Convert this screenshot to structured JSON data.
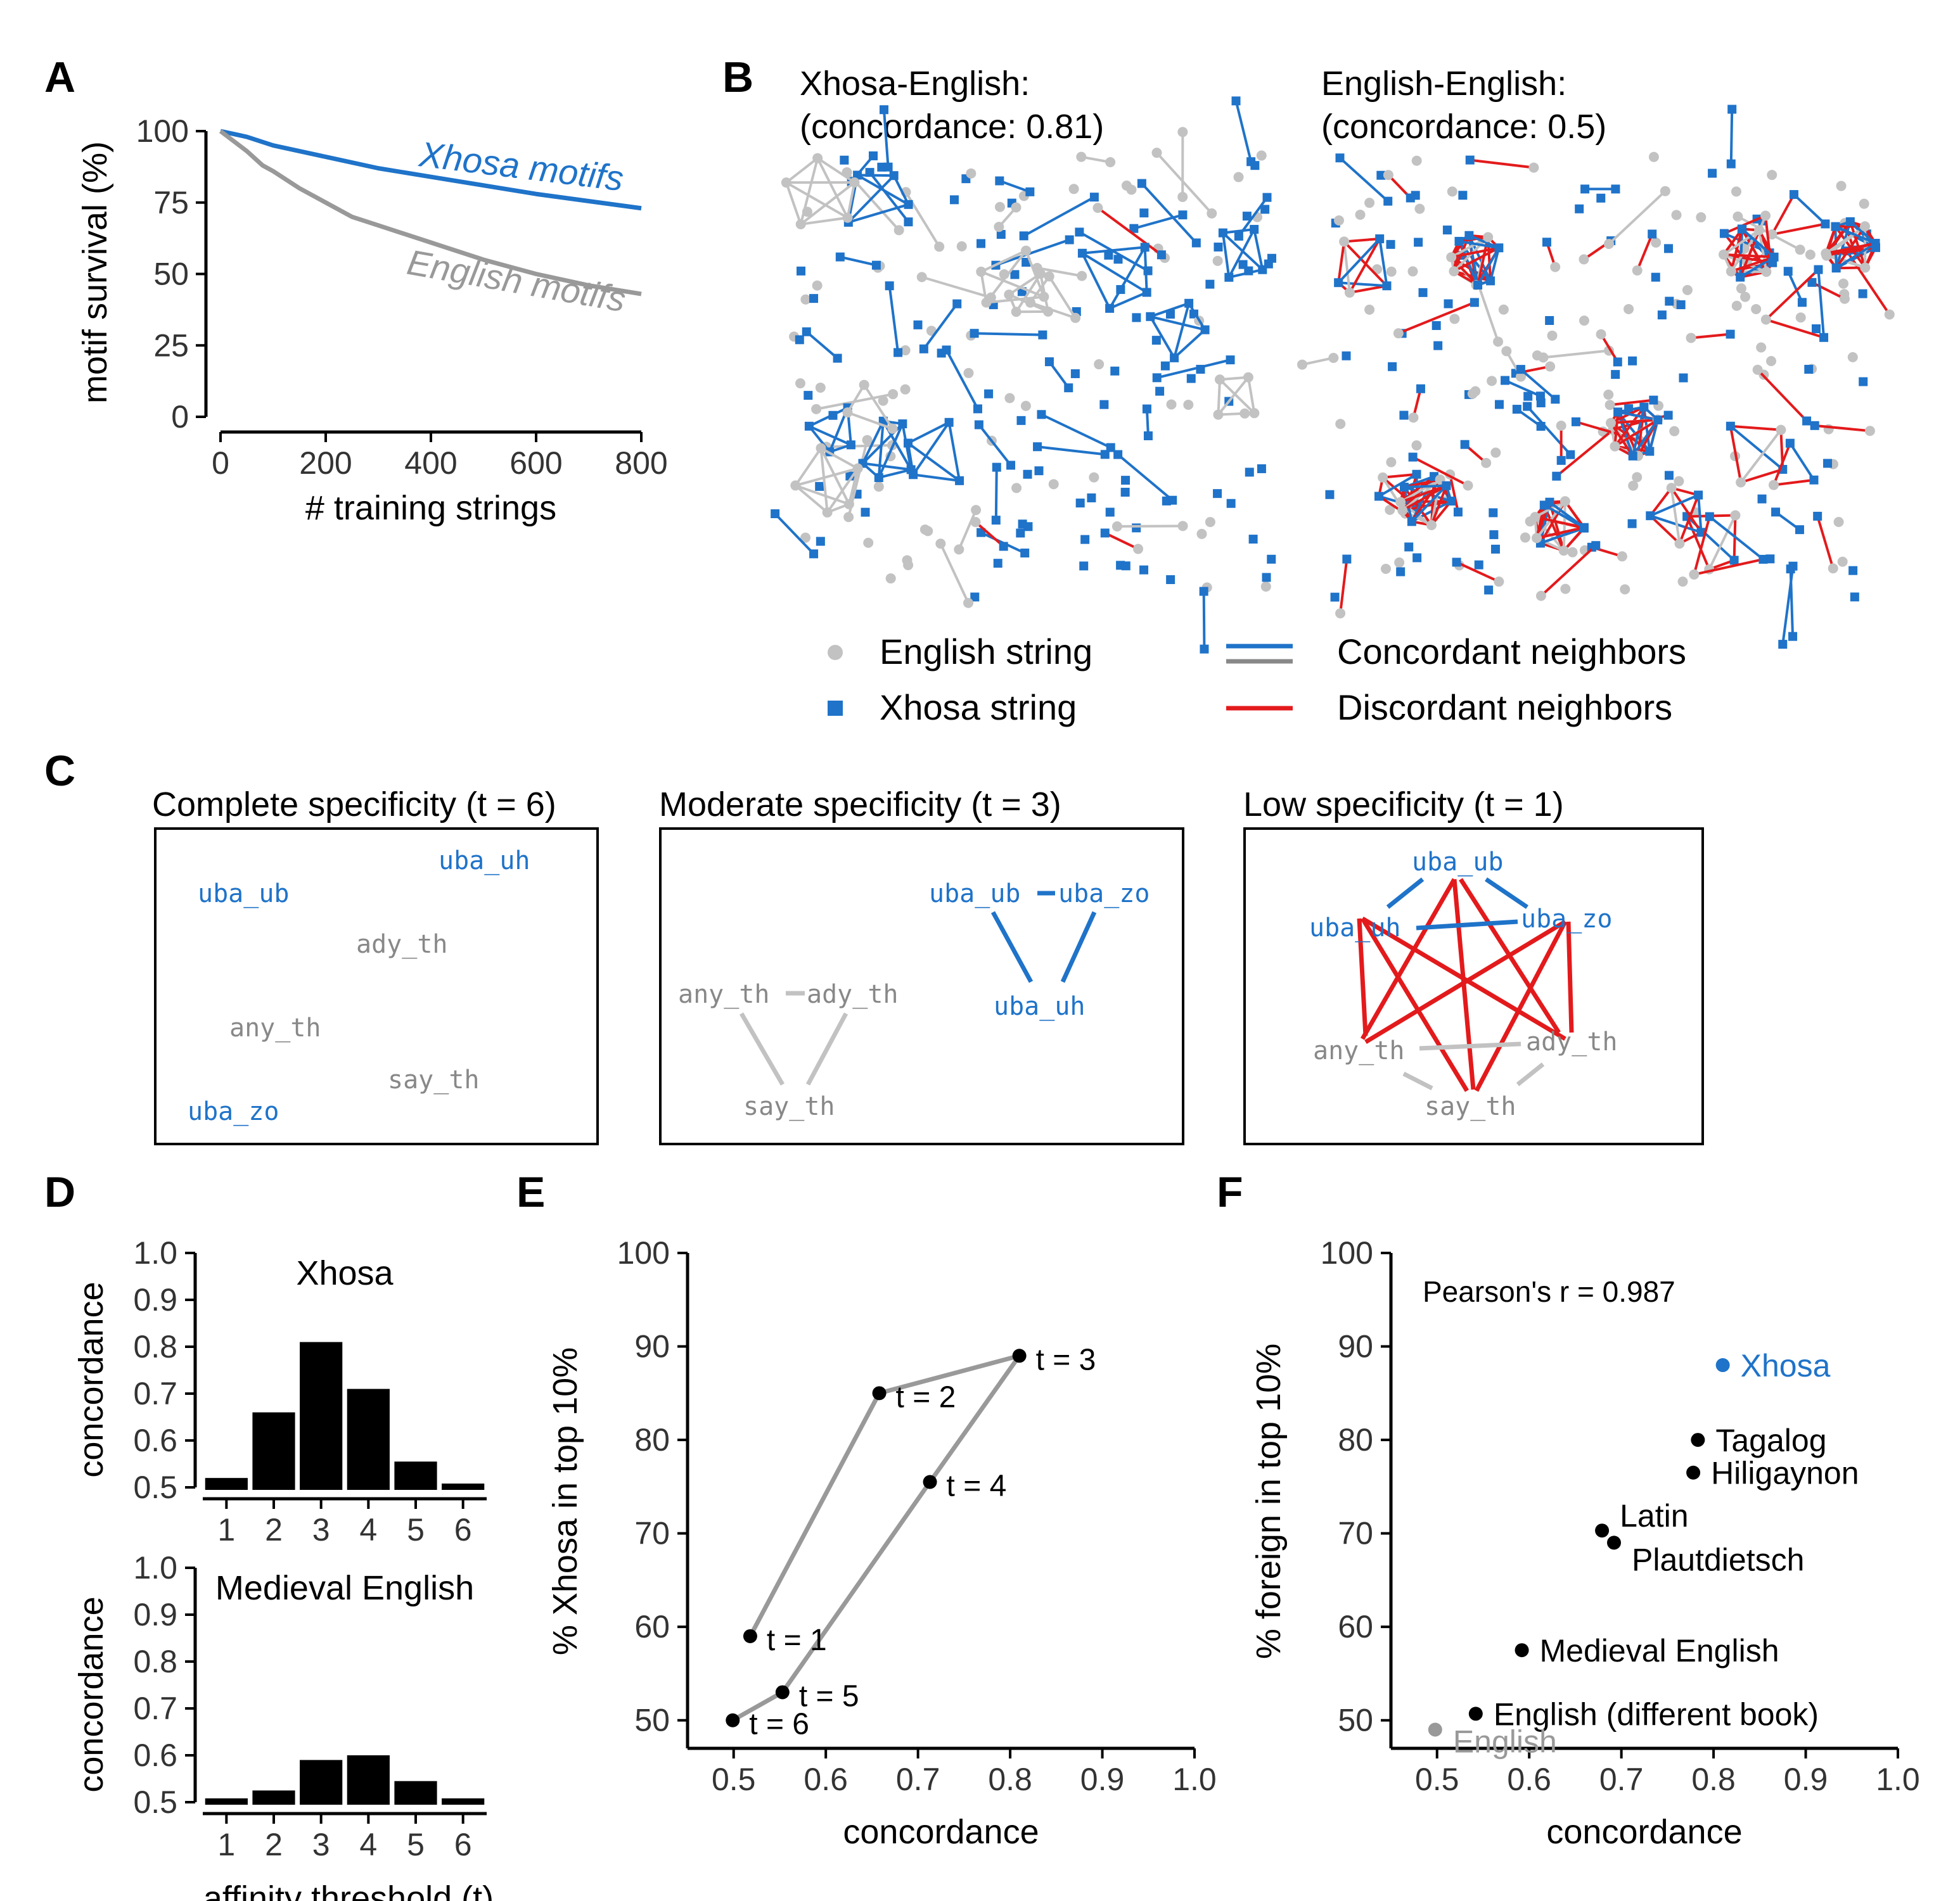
{
  "colors": {
    "blue": "#1f73c9",
    "red": "#e31a1c",
    "gray": "#999999",
    "lightgray": "#c2c2c2",
    "black": "#000000",
    "axis": "#333333"
  },
  "panels": {
    "A": {
      "letter": "A"
    },
    "B": {
      "letter": "B",
      "left_title_line1": "Xhosa-English:",
      "left_title_line2": "(concordance: 0.81)",
      "right_title_line1": "English-English:",
      "right_title_line2": "(concordance: 0.5)",
      "legend": {
        "english_string": "English string",
        "xhosa_string": "Xhosa string",
        "concordant": "Concordant neighbors",
        "discordant": "Discordant neighbors"
      }
    },
    "C": {
      "letter": "C",
      "boxes": [
        {
          "title": "Complete specificity (t = 6)",
          "labels": [
            "uba_uh",
            "uba_ub",
            "ady_th",
            "any_th",
            "say_th",
            "uba_zo"
          ]
        },
        {
          "title": "Moderate specificity (t = 3)",
          "labels": [
            "uba_ub",
            "uba_zo",
            "uba_uh",
            "any_th",
            "ady_th",
            "say_th"
          ]
        },
        {
          "title": "Low specificity (t = 1)",
          "labels": [
            "uba_ub",
            "uba_uh",
            "uba_zo",
            "any_th",
            "ady_th",
            "say_th"
          ]
        }
      ]
    },
    "D": {
      "letter": "D"
    },
    "E": {
      "letter": "E"
    },
    "F": {
      "letter": "F"
    }
  },
  "chart_data": [
    {
      "id": "A",
      "type": "line",
      "title": "",
      "xlabel": "# training strings",
      "ylabel": "motif survival (%)",
      "xlim": [
        0,
        800
      ],
      "ylim": [
        0,
        100
      ],
      "xticks": [
        0,
        200,
        400,
        600,
        800
      ],
      "yticks": [
        0,
        25,
        50,
        75,
        100
      ],
      "series": [
        {
          "name": "Xhosa motifs",
          "color": "blue",
          "x": [
            0,
            50,
            100,
            200,
            300,
            400,
            500,
            600,
            700,
            800
          ],
          "y": [
            100,
            98,
            95,
            91,
            87,
            84,
            81,
            78,
            75.5,
            73
          ]
        },
        {
          "name": "English motifs",
          "color": "gray",
          "x": [
            0,
            50,
            80,
            100,
            150,
            200,
            250,
            300,
            400,
            500,
            600,
            700,
            800
          ],
          "y": [
            100,
            93,
            88,
            86,
            80,
            75,
            70,
            67,
            61,
            55,
            50,
            46,
            43
          ]
        }
      ]
    },
    {
      "id": "D-top",
      "type": "bar",
      "title": "Xhosa",
      "xlabel": "",
      "ylabel": "concordance",
      "categories": [
        "1",
        "2",
        "3",
        "4",
        "5",
        "6"
      ],
      "values": [
        0.52,
        0.66,
        0.81,
        0.71,
        0.555,
        0.5
      ],
      "ylim": [
        0.5,
        1.0
      ],
      "yticks": [
        "0.5",
        "0.6",
        "0.7",
        "0.8",
        "0.9",
        "1.0"
      ]
    },
    {
      "id": "D-bottom",
      "type": "bar",
      "title": "Medieval English",
      "xlabel": "affinity threshold (t)",
      "ylabel": "concordance",
      "categories": [
        "1",
        "2",
        "3",
        "4",
        "5",
        "6"
      ],
      "values": [
        0.5,
        0.525,
        0.59,
        0.6,
        0.545,
        0.5
      ],
      "ylim": [
        0.5,
        1.0
      ],
      "yticks": [
        "0.5",
        "0.6",
        "0.7",
        "0.8",
        "0.9",
        "1.0"
      ]
    },
    {
      "id": "E",
      "type": "line",
      "title": "",
      "xlabel": "concordance",
      "ylabel": "% Xhosa in top 10%",
      "xlim": [
        0.45,
        1.0
      ],
      "ylim": [
        47,
        100
      ],
      "xticks": [
        "0.5",
        "0.6",
        "0.7",
        "0.8",
        "0.9",
        "1.0"
      ],
      "yticks": [
        "50",
        "60",
        "70",
        "80",
        "90",
        "100"
      ],
      "points": [
        {
          "label": "t = 1",
          "x": 0.518,
          "y": 59
        },
        {
          "label": "t = 2",
          "x": 0.658,
          "y": 85
        },
        {
          "label": "t = 3",
          "x": 0.81,
          "y": 89
        },
        {
          "label": "t = 4",
          "x": 0.713,
          "y": 75.5
        },
        {
          "label": "t = 5",
          "x": 0.553,
          "y": 53
        },
        {
          "label": "t = 6",
          "x": 0.499,
          "y": 50
        }
      ]
    },
    {
      "id": "F",
      "type": "scatter",
      "title": "",
      "xlabel": "concordance",
      "ylabel": "% foreign in top 10%",
      "annotation": "Pearson's r = 0.987",
      "xlim": [
        0.45,
        1.0
      ],
      "ylim": [
        47,
        100
      ],
      "xticks": [
        "0.5",
        "0.6",
        "0.7",
        "0.8",
        "0.9",
        "1.0"
      ],
      "yticks": [
        "50",
        "60",
        "70",
        "80",
        "90",
        "100"
      ],
      "points": [
        {
          "label": "Xhosa",
          "x": 0.81,
          "y": 88,
          "color": "blue"
        },
        {
          "label": "Tagalog",
          "x": 0.783,
          "y": 80,
          "color": "black"
        },
        {
          "label": "Hiligaynon",
          "x": 0.778,
          "y": 76.5,
          "color": "black"
        },
        {
          "label": "Latin",
          "x": 0.679,
          "y": 70.3,
          "color": "black"
        },
        {
          "label": "Plautdietsch",
          "x": 0.692,
          "y": 69,
          "color": "black"
        },
        {
          "label": "Medieval English",
          "x": 0.592,
          "y": 57.5,
          "color": "black"
        },
        {
          "label": "English (different book)",
          "x": 0.542,
          "y": 50.7,
          "color": "black"
        },
        {
          "label": "English",
          "x": 0.498,
          "y": 49,
          "color": "gray"
        }
      ]
    }
  ]
}
